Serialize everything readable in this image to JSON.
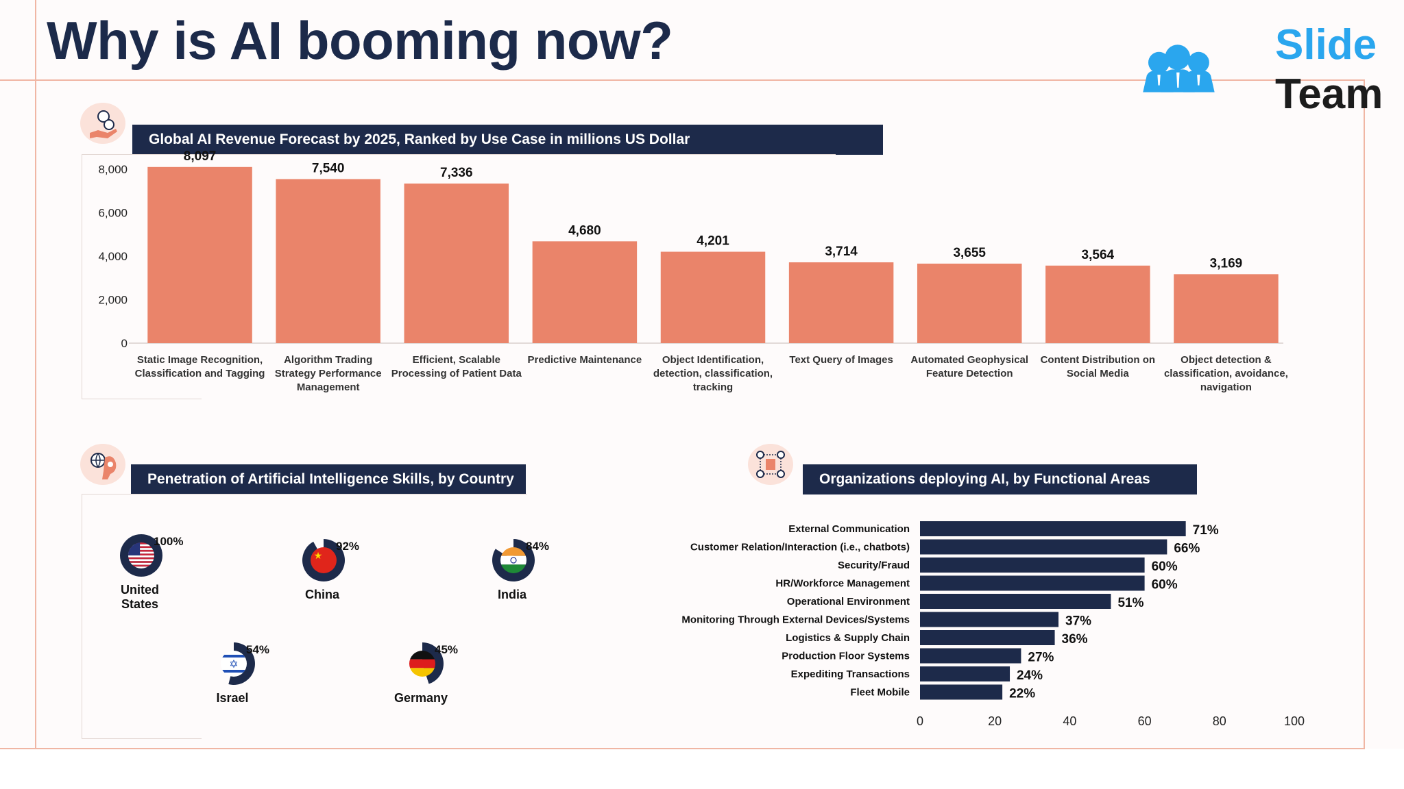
{
  "title": "Why is AI booming now?",
  "logo": {
    "line1": "Slide",
    "line2": "Team"
  },
  "colors": {
    "navy": "#1d2a4a",
    "salmon": "#ea846a",
    "accent_line": "#f0b6a4"
  },
  "icons": {
    "revenue": "money-hand-icon",
    "skills": "brain-globe-icon",
    "organizations": "network-people-icon",
    "logo": "team-people-icon"
  },
  "sections": {
    "revenue": {
      "heading": "Global AI Revenue Forecast by 2025, Ranked by Use Case in millions US Dollar"
    },
    "skills": {
      "heading": "Penetration of Artificial Intelligence Skills, by Country"
    },
    "organizations": {
      "heading": "Organizations deploying AI, by Functional Areas"
    }
  },
  "chart_data": [
    {
      "type": "bar",
      "title": "Global AI Revenue Forecast by 2025, Ranked by Use Case in millions US Dollar",
      "categories": [
        [
          "Static Image Recognition,",
          "Classification and Tagging"
        ],
        [
          "Algorithm Trading",
          "Strategy Performance",
          "Management"
        ],
        [
          "Efficient, Scalable",
          "Processing of Patient Data"
        ],
        [
          "Predictive Maintenance"
        ],
        [
          "Object Identification,",
          "detection, classification,",
          "tracking"
        ],
        [
          "Text Query of Images"
        ],
        [
          "Automated Geophysical",
          "Feature Detection"
        ],
        [
          "Content Distribution on",
          "Social Media"
        ],
        [
          "Object detection &",
          "classification, avoidance,",
          "navigation"
        ]
      ],
      "values": [
        8097,
        7540,
        7336,
        4680,
        4201,
        3714,
        3655,
        3564,
        3169
      ],
      "value_labels": [
        "8,097",
        "7,540",
        "7,336",
        "4,680",
        "4,201",
        "3,714",
        "3,655",
        "3,564",
        "3,169"
      ],
      "y_ticks": [
        0,
        2000,
        4000,
        6000,
        8000
      ],
      "y_tick_labels": [
        "0",
        "2,000",
        "4,000",
        "6,000",
        "8,000"
      ],
      "ylim": [
        0,
        8500
      ],
      "grid": false,
      "color": "#ea846a"
    },
    {
      "type": "pie",
      "title": "Penetration of Artificial Intelligence Skills, by Country",
      "items": [
        {
          "country": [
            "United",
            "States"
          ],
          "value": 100,
          "label": "100%",
          "flag": "us-flag-icon"
        },
        {
          "country": [
            "China"
          ],
          "value": 92,
          "label": "92%",
          "flag": "china-flag-icon"
        },
        {
          "country": [
            "India"
          ],
          "value": 84,
          "label": "84%",
          "flag": "india-flag-icon"
        },
        {
          "country": [
            "Israel"
          ],
          "value": 54,
          "label": "54%",
          "flag": "israel-flag-icon"
        },
        {
          "country": [
            "Germany"
          ],
          "value": 45,
          "label": "45%",
          "flag": "germany-flag-icon"
        }
      ],
      "color": "#1d2a4a"
    },
    {
      "type": "bar",
      "orientation": "horizontal",
      "title": "Organizations deploying AI, by Functional Areas",
      "categories": [
        "External Communication",
        "Customer Relation/Interaction (i.e., chatbots)",
        "Security/Fraud",
        "HR/Workforce Management",
        "Operational Environment",
        "Monitoring Through External Devices/Systems",
        "Logistics & Supply Chain",
        "Production Floor Systems",
        "Expediting Transactions",
        "Fleet Mobile"
      ],
      "values": [
        71,
        66,
        60,
        60,
        51,
        37,
        36,
        27,
        24,
        22
      ],
      "value_labels": [
        "71%",
        "66%",
        "60%",
        "60%",
        "51%",
        "37%",
        "36%",
        "27%",
        "24%",
        "22%"
      ],
      "x_ticks": [
        0,
        20,
        40,
        60,
        80,
        100
      ],
      "x_tick_labels": [
        "0",
        "20",
        "40",
        "60",
        "80",
        "100"
      ],
      "xlim": [
        0,
        100
      ],
      "grid": false,
      "color": "#1d2a4a"
    }
  ]
}
